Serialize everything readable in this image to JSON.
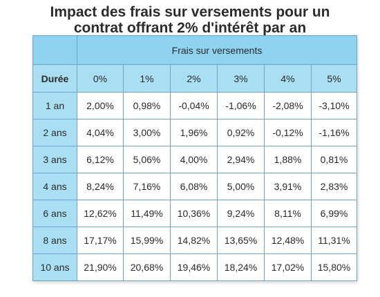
{
  "title": {
    "line1": "Impact des frais sur versements pour un",
    "line2": "contrat offrant 2% d'intérêt par an"
  },
  "table": {
    "group_header": "Frais sur versements",
    "row_header": "Durée",
    "columns": [
      "0%",
      "1%",
      "2%",
      "3%",
      "4%",
      "5%"
    ],
    "rows": [
      {
        "label": "1 an",
        "values": [
          "2,00%",
          "0,98%",
          "-0,04%",
          "-1,06%",
          "-2,08%",
          "-3,10%"
        ]
      },
      {
        "label": "2 ans",
        "values": [
          "4,04%",
          "3,00%",
          "1,96%",
          "0,92%",
          "-0,12%",
          "-1,16%"
        ]
      },
      {
        "label": "3 ans",
        "values": [
          "6,12%",
          "5,06%",
          "4,00%",
          "2,94%",
          "1,88%",
          "0,81%"
        ]
      },
      {
        "label": "4 ans",
        "values": [
          "8,24%",
          "7,16%",
          "6,08%",
          "5,00%",
          "3,91%",
          "2,83%"
        ]
      },
      {
        "label": "6 ans",
        "values": [
          "12,62%",
          "11,49%",
          "10,36%",
          "9,24%",
          "8,11%",
          "6,99%"
        ]
      },
      {
        "label": "8 ans",
        "values": [
          "17,17%",
          "15,99%",
          "14,82%",
          "13,65%",
          "12,48%",
          "11,31%"
        ]
      },
      {
        "label": "10 ans",
        "values": [
          "21,90%",
          "20,68%",
          "19,46%",
          "18,24%",
          "17,02%",
          "15,80%"
        ]
      }
    ]
  },
  "colors": {
    "header_fill": "#8fd3ef",
    "label_fill": "#a9def3",
    "border": "#6fa3cc"
  }
}
